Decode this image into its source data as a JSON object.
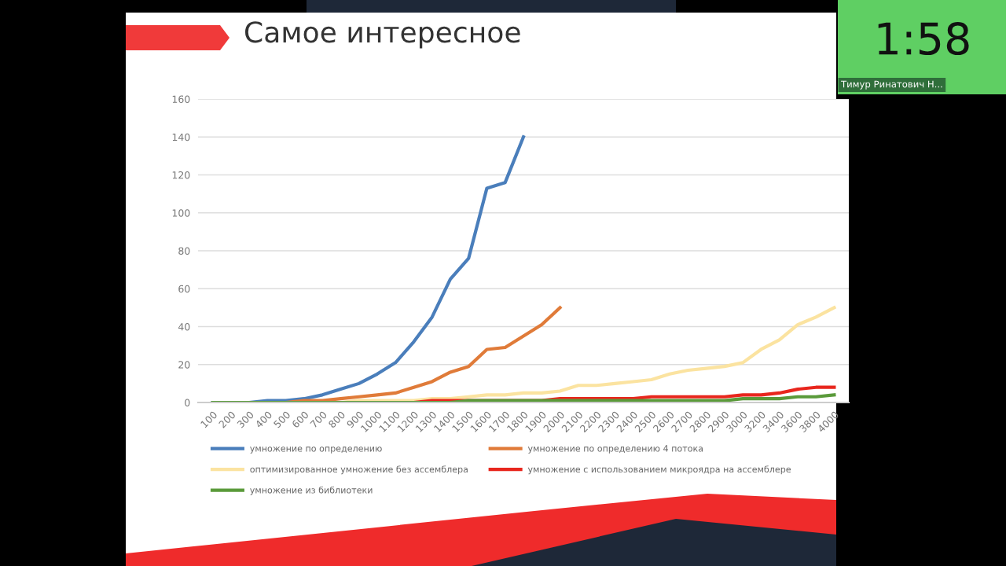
{
  "chart_data": {
    "type": "line",
    "title": "Самое интересное",
    "categories": [
      "100",
      "200",
      "300",
      "400",
      "500",
      "600",
      "700",
      "800",
      "900",
      "1000",
      "1100",
      "1200",
      "1300",
      "1400",
      "1500",
      "1600",
      "1700",
      "1800",
      "1900",
      "2000",
      "2100",
      "2200",
      "2300",
      "2400",
      "2500",
      "2600",
      "2700",
      "2800",
      "2900",
      "3000",
      "3200",
      "3400",
      "3600",
      "3800",
      "4000"
    ],
    "series": [
      {
        "name": "умножение по определению",
        "color": "#4a7ebb",
        "values": [
          0,
          0,
          0,
          1,
          1,
          2,
          4,
          7,
          10,
          15,
          21,
          32,
          45,
          65,
          76,
          113,
          116,
          140,
          null,
          null,
          null,
          null,
          null,
          null,
          null,
          null,
          null,
          null,
          null,
          null,
          null,
          null,
          null,
          null,
          null
        ]
      },
      {
        "name": "умножение по определению 4 потока",
        "color": "#e07b39",
        "values": [
          null,
          null,
          null,
          0,
          0,
          1,
          1,
          2,
          3,
          4,
          5,
          8,
          11,
          16,
          19,
          28,
          29,
          35,
          41,
          50,
          null,
          null,
          null,
          null,
          null,
          null,
          null,
          null,
          null,
          null,
          null,
          null,
          null,
          null,
          null
        ]
      },
      {
        "name": "оптимизированное умножение без ассемблера",
        "color": "#fbe3a0",
        "values": [
          null,
          null,
          null,
          null,
          0,
          0,
          0,
          0,
          1,
          1,
          1,
          1,
          2,
          2,
          3,
          4,
          4,
          5,
          5,
          6,
          9,
          9,
          10,
          11,
          12,
          15,
          17,
          18,
          19,
          21,
          28,
          33,
          41,
          45,
          50
        ]
      },
      {
        "name": "умножение с использованием микроядра на ассемблере",
        "color": "#e8261d",
        "values": [
          null,
          null,
          null,
          null,
          0,
          0,
          0,
          0,
          0,
          0,
          0,
          0,
          1,
          1,
          1,
          1,
          1,
          1,
          1,
          2,
          2,
          2,
          2,
          2,
          3,
          3,
          3,
          3,
          3,
          4,
          4,
          5,
          7,
          8,
          8
        ]
      },
      {
        "name": "умножение из библиотеки",
        "color": "#5a9a3a",
        "values": [
          0,
          0,
          0,
          0,
          0,
          0,
          0,
          0,
          0,
          0,
          0,
          0,
          0,
          0,
          1,
          1,
          1,
          1,
          1,
          1,
          1,
          1,
          1,
          1,
          1,
          1,
          1,
          1,
          1,
          2,
          2,
          2,
          3,
          3,
          4
        ]
      }
    ],
    "ylim": [
      0,
      160
    ],
    "yticks": [
      0,
      20,
      40,
      60,
      80,
      100,
      120,
      140,
      160
    ],
    "grid": "y",
    "legend": "bottom",
    "marker": "none",
    "line_style": "solid",
    "annotations": [
      "1:58",
      "Тимур Ринатович Н..."
    ]
  }
}
